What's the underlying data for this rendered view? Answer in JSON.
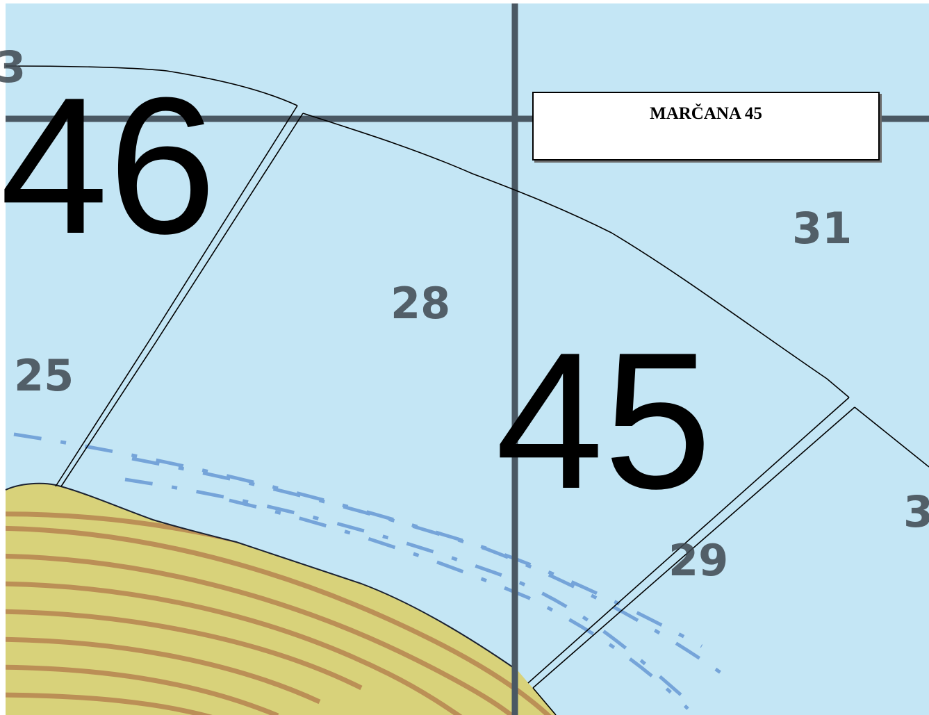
{
  "title": "MARČANA 45",
  "zones": {
    "left": "46",
    "main": "45"
  },
  "map_labels": {
    "a": "28",
    "b": "31",
    "c": "25",
    "d": "29",
    "e": "3",
    "f": "3"
  },
  "colors": {
    "sea": "#c4e6f5",
    "grid_line": "#4a5863",
    "boundary": "#000000",
    "land_light": "#d8d27a",
    "land_dark": "#a45a3a",
    "contour_blue": "#5b8fd0"
  }
}
